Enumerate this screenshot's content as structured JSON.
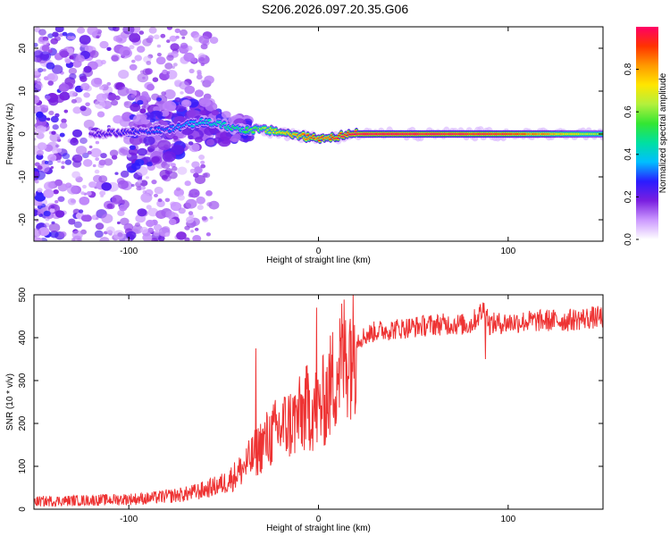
{
  "title": "S206.2026.097.20.35.G06",
  "chart_data": [
    {
      "type": "heatmap",
      "title": "S206.2026.097.20.35.G06",
      "xlabel": "Height of straight line (km)",
      "ylabel": "Frequency (Hz)",
      "xlim": [
        -150,
        150
      ],
      "ylim": [
        -25,
        25
      ],
      "xticks": [
        -100,
        0,
        100
      ],
      "yticks": [
        -20,
        -10,
        0,
        10,
        20
      ],
      "colorbar": {
        "label": "Normalized spectral amplitude",
        "range": [
          0,
          1
        ],
        "ticks": [
          0.0,
          0.2,
          0.4,
          0.6,
          0.8
        ],
        "colormap": [
          "#ffffff",
          "#cc99ff",
          "#7a1fe0",
          "#2a1cff",
          "#00bfff",
          "#00e0a0",
          "#33e633",
          "#b3f03d",
          "#ffe600",
          "#ff9900",
          "#ff3300",
          "#ff0066"
        ]
      },
      "ridge": {
        "x": [
          -120,
          -100,
          -80,
          -60,
          -40,
          -30,
          -20,
          -10,
          0,
          10,
          20,
          50,
          100,
          150
        ],
        "frequency": [
          0,
          0.5,
          1,
          3,
          1,
          1,
          0.5,
          -0.5,
          -1,
          -0.5,
          0,
          0,
          0,
          0
        ],
        "amplitude": [
          0.2,
          0.25,
          0.3,
          0.4,
          0.5,
          0.6,
          0.7,
          0.8,
          0.85,
          0.9,
          1.0,
          1.0,
          0.9,
          0.6
        ]
      },
      "noise_region_x": [
        -150,
        -55
      ]
    },
    {
      "type": "line",
      "xlabel": "Height of straight line (km)",
      "ylabel": "SNR (10 * v/v)",
      "xlim": [
        -150,
        150
      ],
      "ylim": [
        0,
        500
      ],
      "xticks": [
        -100,
        0,
        100
      ],
      "yticks": [
        0,
        100,
        200,
        300,
        400,
        500
      ],
      "color": "#ee3333",
      "series": [
        {
          "x": [
            -150,
            -130,
            -110,
            -90,
            -70,
            -60,
            -50,
            -45,
            -40,
            -35,
            -30,
            -25,
            -20,
            -15,
            -10,
            -5,
            0,
            5,
            10,
            15,
            20,
            30,
            40,
            50,
            60,
            70,
            80,
            88,
            90,
            100,
            110,
            120,
            130,
            140,
            150
          ],
          "values": [
            18,
            20,
            22,
            25,
            35,
            45,
            60,
            75,
            95,
            120,
            150,
            170,
            190,
            200,
            215,
            240,
            230,
            270,
            330,
            370,
            395,
            415,
            420,
            425,
            430,
            432,
            430,
            470,
            432,
            435,
            438,
            440,
            440,
            445,
            448
          ],
          "spikes": [
            [
              -33,
              375
            ],
            [
              -1,
              470
            ],
            [
              88,
              500
            ],
            [
              88,
              350
            ]
          ]
        }
      ]
    }
  ]
}
